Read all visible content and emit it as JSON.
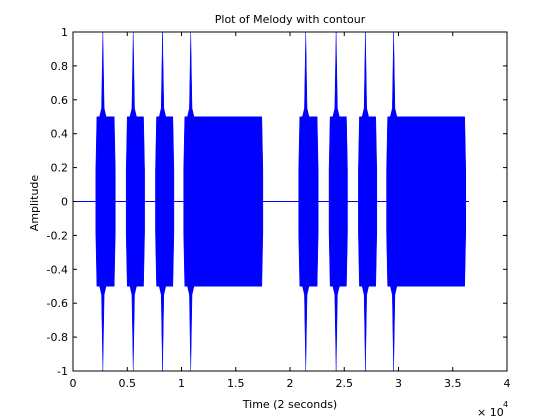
{
  "chart_data": {
    "type": "line",
    "title": "Plot of Melody with contour",
    "xlabel": "Time (2 seconds)",
    "ylabel": "Amplitude",
    "xlim": [
      0,
      4
    ],
    "ylim": [
      -1,
      1
    ],
    "x_scale_label": "× 10",
    "x_scale_exponent": "4",
    "xticks": [
      "0",
      "0.5",
      "1",
      "1.5",
      "2",
      "2.5",
      "3",
      "3.5",
      "4"
    ],
    "yticks": [
      "-1",
      "-0.8",
      "-0.6",
      "-0.4",
      "-0.2",
      "0",
      "0.2",
      "0.4",
      "0.6",
      "0.8",
      "1"
    ],
    "grid": false,
    "series": [
      {
        "color": "#0000ff",
        "baseline": [
          0,
          3.65
        ],
        "notes": [
          {
            "start": 0.21,
            "end": 0.39,
            "peak": 1.0,
            "sustain": 0.5
          },
          {
            "start": 0.49,
            "end": 0.66,
            "peak": 1.0,
            "sustain": 0.5
          },
          {
            "start": 0.76,
            "end": 0.93,
            "peak": 1.0,
            "sustain": 0.5
          },
          {
            "start": 1.02,
            "end": 1.75,
            "peak": 1.0,
            "sustain": 0.5
          },
          {
            "start": 2.08,
            "end": 2.26,
            "peak": 1.0,
            "sustain": 0.5
          },
          {
            "start": 2.36,
            "end": 2.53,
            "peak": 1.0,
            "sustain": 0.5
          },
          {
            "start": 2.63,
            "end": 2.8,
            "peak": 1.0,
            "sustain": 0.5
          },
          {
            "start": 2.89,
            "end": 3.62,
            "peak": 1.0,
            "sustain": 0.5
          }
        ]
      }
    ]
  }
}
